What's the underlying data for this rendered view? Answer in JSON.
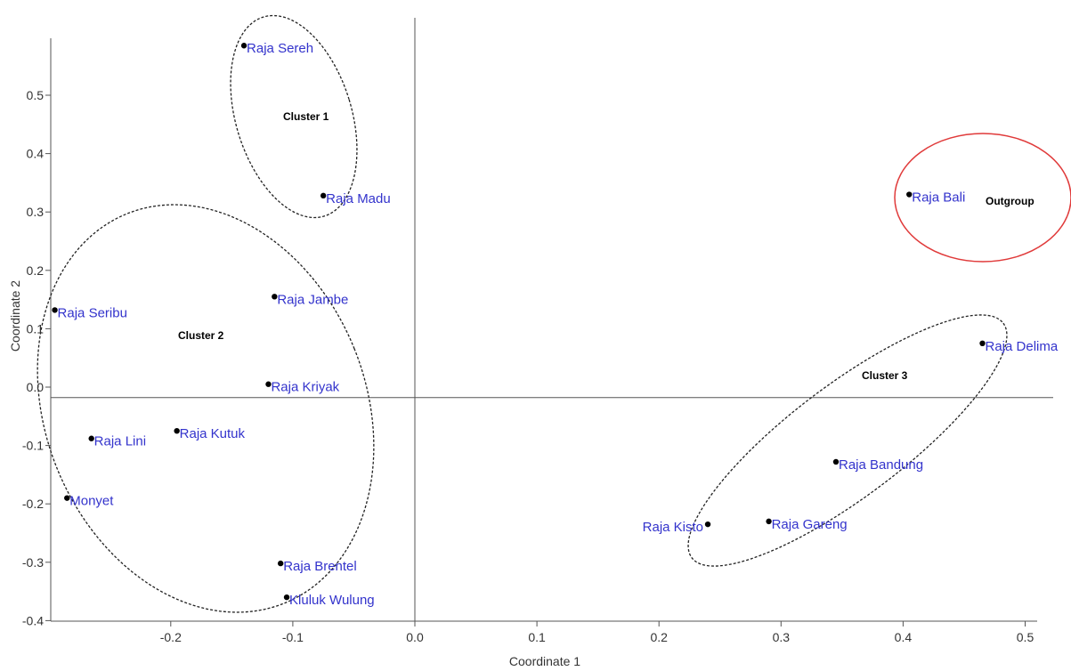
{
  "chart_data": {
    "type": "scatter",
    "xlabel": "Coordinate 1",
    "ylabel": "Coordinate 2",
    "xlim": [
      -0.3,
      0.52
    ],
    "ylim": [
      -0.4,
      0.6
    ],
    "x_ticks": [
      -0.2,
      -0.1,
      0.0,
      0.1,
      0.2,
      0.3,
      0.4,
      0.5
    ],
    "x_tick_labels": [
      "-0.2",
      "-0.1",
      "0.0",
      "0.1",
      "0.2",
      "0.3",
      "0.4",
      "0.5"
    ],
    "y_ticks": [
      -0.4,
      -0.3,
      -0.2,
      -0.1,
      0.0,
      0.1,
      0.2,
      0.3,
      0.4,
      0.5
    ],
    "y_tick_labels": [
      "-0.4",
      "-0.3",
      "-0.2",
      "-0.1",
      "0.0",
      "0.1",
      "0.2",
      "0.3",
      "0.4",
      "0.5"
    ],
    "reference_lines": {
      "x": 0.0,
      "y": -0.018
    },
    "grid": false,
    "points": [
      {
        "label": "Raja Sereh",
        "x": -0.14,
        "y": 0.585
      },
      {
        "label": "Raja Madu",
        "x": -0.075,
        "y": 0.328
      },
      {
        "label": "Raja Jambe",
        "x": -0.115,
        "y": 0.155
      },
      {
        "label": "Raja Seribu",
        "x": -0.295,
        "y": 0.132
      },
      {
        "label": "Raja Kriyak",
        "x": -0.12,
        "y": 0.005
      },
      {
        "label": "Raja Lini",
        "x": -0.265,
        "y": -0.088
      },
      {
        "label": "Raja Kutuk",
        "x": -0.195,
        "y": -0.075
      },
      {
        "label": "Monyet",
        "x": -0.285,
        "y": -0.19
      },
      {
        "label": "Raja Brentel",
        "x": -0.11,
        "y": -0.302
      },
      {
        "label": "Kluluk Wulung",
        "x": -0.105,
        "y": -0.36
      },
      {
        "label": "Raja Bali",
        "x": 0.405,
        "y": 0.33
      },
      {
        "label": "Raja Delima",
        "x": 0.465,
        "y": 0.075
      },
      {
        "label": "Raja Bandung",
        "x": 0.345,
        "y": -0.128
      },
      {
        "label": "Raja Gareng",
        "x": 0.29,
        "y": -0.23
      },
      {
        "label": "Raja Kisto",
        "x": 0.24,
        "y": -0.235
      }
    ],
    "groups": [
      {
        "label": "Cluster 1",
        "color": "#000000",
        "style": "dashed",
        "members": [
          "Raja Sereh",
          "Raja Madu"
        ]
      },
      {
        "label": "Cluster 2",
        "color": "#000000",
        "style": "dashed",
        "members": [
          "Raja Jambe",
          "Raja Seribu",
          "Raja Kriyak",
          "Raja Lini",
          "Raja Kutuk",
          "Monyet",
          "Raja Brentel",
          "Kluluk Wulung"
        ]
      },
      {
        "label": "Cluster 3",
        "color": "#000000",
        "style": "dashed",
        "members": [
          "Raja Delima",
          "Raja Bandung",
          "Raja Gareng",
          "Raja Kisto"
        ]
      },
      {
        "label": "Outgroup",
        "color": "#e03a3a",
        "style": "solid",
        "members": [
          "Raja Bali"
        ]
      }
    ],
    "colors": {
      "point": "#000000",
      "point_label": "#3333cc",
      "axis": "#555555",
      "outgroup_ring": "#e03a3a"
    }
  }
}
